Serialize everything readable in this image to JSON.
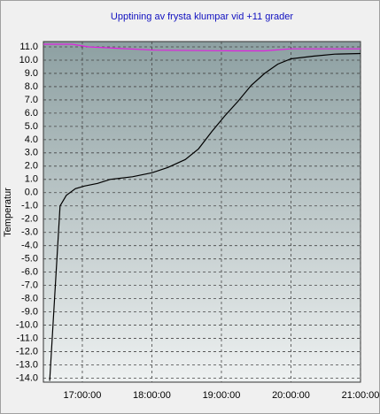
{
  "chart_data": {
    "type": "line",
    "title": "Upptining av frysta klumpar vid +11 grader",
    "y_label": "Temperatur",
    "xlim": [
      16.44,
      21.0
    ],
    "xticks": [
      {
        "value": 17,
        "label": "17:00:00"
      },
      {
        "value": 18,
        "label": "18:00:00"
      },
      {
        "value": 19,
        "label": "19:00:00"
      },
      {
        "value": 20,
        "label": "20:00:00"
      },
      {
        "value": 21,
        "label": "21:00:00"
      }
    ],
    "ylim": [
      -14.3,
      11.4
    ],
    "yticks": [
      {
        "value": 11,
        "label": "11.0"
      },
      {
        "value": 10,
        "label": "10.0"
      },
      {
        "value": 9,
        "label": "9.0"
      },
      {
        "value": 8,
        "label": "8.0"
      },
      {
        "value": 7,
        "label": "7.0"
      },
      {
        "value": 6,
        "label": "6.0"
      },
      {
        "value": 5,
        "label": "5.0"
      },
      {
        "value": 4,
        "label": "4.0"
      },
      {
        "value": 3,
        "label": "3.0"
      },
      {
        "value": 2,
        "label": "2.0"
      },
      {
        "value": 1,
        "label": "1.0"
      },
      {
        "value": 0,
        "label": "0.0"
      },
      {
        "value": -1,
        "label": "-1.0"
      },
      {
        "value": -2,
        "label": "-2.0"
      },
      {
        "value": -3,
        "label": "-3.0"
      },
      {
        "value": -4,
        "label": "-4.0"
      },
      {
        "value": -5,
        "label": "-5.0"
      },
      {
        "value": -6,
        "label": "-6.0"
      },
      {
        "value": -7,
        "label": "-7.0"
      },
      {
        "value": -8,
        "label": "-8.0"
      },
      {
        "value": -9,
        "label": "-9.0"
      },
      {
        "value": -10,
        "label": "-10.0"
      },
      {
        "value": -11,
        "label": "-11.0"
      },
      {
        "value": -12,
        "label": "-12.0"
      },
      {
        "value": -13,
        "label": "-13.0"
      },
      {
        "value": -14,
        "label": "-14.0"
      }
    ],
    "grid": true,
    "series": [
      {
        "color": "#000000",
        "x": [
          16.53,
          16.68,
          16.77,
          16.9,
          17.03,
          17.22,
          17.4,
          17.72,
          18.0,
          18.23,
          18.48,
          18.67,
          18.86,
          19.05,
          19.24,
          19.43,
          19.62,
          19.81,
          20.0,
          20.32,
          20.63,
          21.0
        ],
        "values": [
          -14.2,
          -1.0,
          -0.2,
          0.3,
          0.5,
          0.7,
          1.0,
          1.2,
          1.5,
          1.9,
          2.5,
          3.3,
          4.6,
          5.8,
          6.9,
          8.1,
          9.0,
          9.7,
          10.1,
          10.3,
          10.45,
          10.5
        ]
      },
      {
        "color": "#e020e0",
        "x": [
          16.44,
          16.85,
          17.09,
          17.47,
          18.04,
          19.18,
          19.62,
          20.0,
          21.0
        ],
        "values": [
          11.2,
          11.2,
          11.0,
          10.9,
          10.75,
          10.7,
          10.7,
          10.85,
          10.85
        ]
      }
    ]
  }
}
